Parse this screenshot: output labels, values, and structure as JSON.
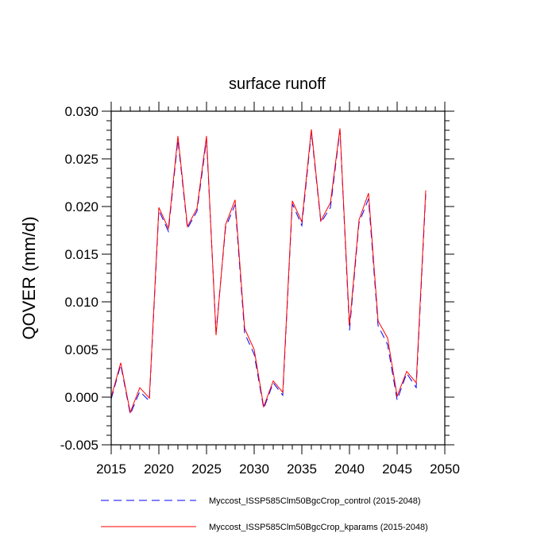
{
  "chart_data": {
    "type": "line",
    "title": "surface runoff",
    "xlabel": "",
    "ylabel": "QOVER  (mm/d)",
    "xlim": [
      2015,
      2050
    ],
    "ylim": [
      -0.005,
      0.03
    ],
    "xticks": [
      2015,
      2020,
      2025,
      2030,
      2035,
      2040,
      2045,
      2050
    ],
    "xtick_labels": [
      "2015",
      "2020",
      "2025",
      "2030",
      "2035",
      "2040",
      "2045",
      "2050"
    ],
    "yticks": [
      -0.005,
      0.0,
      0.005,
      0.01,
      0.015,
      0.02,
      0.025,
      0.03
    ],
    "ytick_labels": [
      "-0.005",
      "0.000",
      "0.005",
      "0.010",
      "0.015",
      "0.020",
      "0.025",
      "0.030"
    ],
    "grid": false,
    "legend_position": "bottom",
    "x": [
      2015,
      2016,
      2017,
      2018,
      2019,
      2020,
      2021,
      2022,
      2023,
      2024,
      2025,
      2026,
      2027,
      2028,
      2029,
      2030,
      2031,
      2032,
      2033,
      2034,
      2035,
      2036,
      2037,
      2038,
      2039,
      2040,
      2041,
      2042,
      2043,
      2044,
      2045,
      2046,
      2047,
      2048
    ],
    "series": [
      {
        "name": "Myccost_ISSP585Clm50BgcCrop_control (2015-2048)",
        "color": "#0000ff",
        "dash": "dashed",
        "values": [
          -0.0002,
          0.0034,
          -0.0018,
          0.0006,
          -0.0004,
          0.0196,
          0.0174,
          0.027,
          0.0177,
          0.0195,
          0.027,
          0.0068,
          0.0178,
          0.0202,
          0.0067,
          0.0045,
          -0.0012,
          0.0015,
          0.0002,
          0.0203,
          0.018,
          0.0278,
          0.0183,
          0.0199,
          0.028,
          0.007,
          0.0183,
          0.0208,
          0.0075,
          0.0055,
          -0.0003,
          0.0025,
          0.001,
          0.0213
        ]
      },
      {
        "name": "Myccost_ISSP585Clm50BgcCrop_kparams (2015-2048)",
        "color": "#ff0000",
        "dash": "solid",
        "values": [
          0.0,
          0.0036,
          -0.0016,
          0.001,
          -0.0001,
          0.0199,
          0.0177,
          0.0274,
          0.0179,
          0.0198,
          0.0274,
          0.0065,
          0.0181,
          0.0207,
          0.0072,
          0.005,
          -0.001,
          0.0017,
          0.0005,
          0.0206,
          0.0184,
          0.0281,
          0.0185,
          0.0204,
          0.0282,
          0.0075,
          0.0186,
          0.0214,
          0.008,
          0.0062,
          0.0001,
          0.0027,
          0.0015,
          0.0217
        ]
      }
    ]
  }
}
